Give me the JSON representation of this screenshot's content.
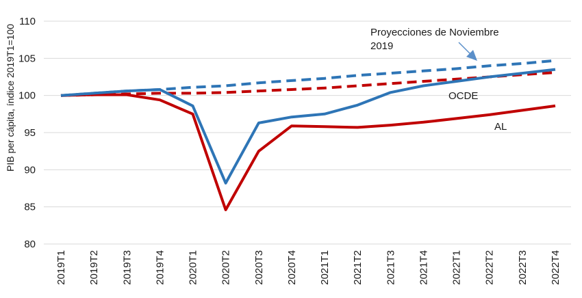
{
  "chart_data": {
    "type": "line",
    "ylabel": "PIB per cápita, índice 2019T1=100",
    "xlabel": "",
    "ylim": [
      80,
      110
    ],
    "yticks": [
      80,
      85,
      90,
      95,
      100,
      105,
      110
    ],
    "grid": true,
    "categories": [
      "2019T1",
      "2019T2",
      "2019T3",
      "2019T4",
      "2020T1",
      "2020T2",
      "2020T3",
      "2020T4",
      "2021T1",
      "2021T2",
      "2021T3",
      "2021T4",
      "2022T1",
      "2022T2",
      "2022T3",
      "2022T4"
    ],
    "series": [
      {
        "key": "ocde",
        "name": "OCDE",
        "style": "solid",
        "color": "#2E75B6",
        "values": [
          100.0,
          100.3,
          100.6,
          100.8,
          98.6,
          88.2,
          96.3,
          97.1,
          97.5,
          98.7,
          100.4,
          101.3,
          101.9,
          102.5,
          103.0,
          103.5
        ]
      },
      {
        "key": "al",
        "name": "AL",
        "style": "solid",
        "color": "#C00000",
        "values": [
          100.0,
          100.1,
          100.1,
          99.4,
          97.5,
          84.6,
          92.5,
          95.9,
          95.8,
          95.7,
          96.0,
          96.4,
          96.9,
          97.4,
          98.0,
          98.6
        ]
      },
      {
        "key": "ocde_proj",
        "style": "dashed",
        "color": "#2E75B6",
        "values": [
          100.0,
          100.3,
          100.6,
          100.8,
          101.1,
          101.3,
          101.7,
          102.0,
          102.3,
          102.7,
          103.0,
          103.3,
          103.6,
          104.0,
          104.3,
          104.7
        ]
      },
      {
        "key": "al_proj",
        "style": "dashed",
        "color": "#C00000",
        "values": [
          100.0,
          100.1,
          100.2,
          100.3,
          100.3,
          100.4,
          100.6,
          100.8,
          101.0,
          101.3,
          101.6,
          101.9,
          102.2,
          102.5,
          102.8,
          103.1
        ]
      }
    ],
    "annotations": {
      "proj_line1": "Proyecciones de Noviembre",
      "proj_line2": "2019",
      "ocde_label": "OCDE",
      "al_label": "AL"
    }
  }
}
